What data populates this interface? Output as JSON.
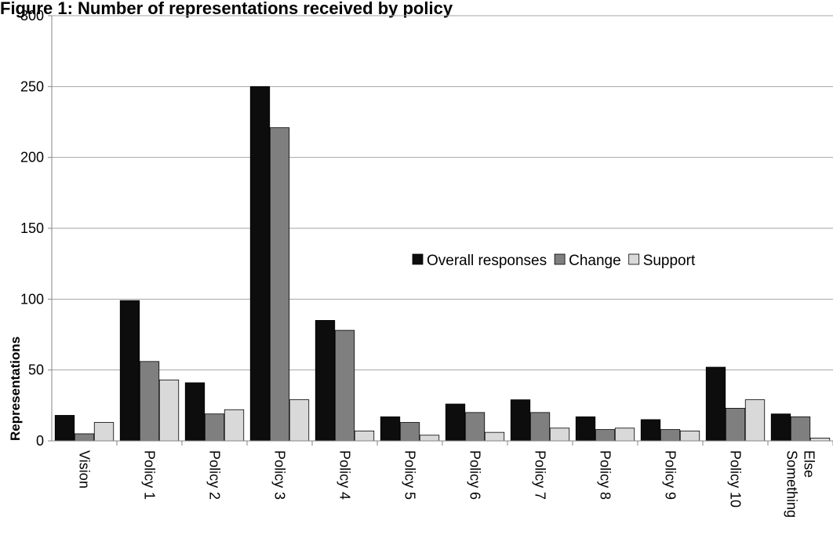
{
  "chart_data": {
    "type": "bar",
    "title": "Figure 1: Number of representations received by policy",
    "xlabel": "",
    "ylabel": "Representations",
    "ylim": [
      0,
      300
    ],
    "yticks": [
      0,
      50,
      100,
      150,
      200,
      250,
      300
    ],
    "grid": true,
    "legend_position": "center-right",
    "categories": [
      "Vision",
      "Policy 1",
      "Policy 2",
      "Policy 3",
      "Policy 4",
      "Policy 5",
      "Policy 6",
      "Policy 7",
      "Policy 8",
      "Policy 9",
      "Policy 10",
      "Something Else"
    ],
    "category_lines": [
      [
        "Vision"
      ],
      [
        "Policy 1"
      ],
      [
        "Policy 2"
      ],
      [
        "Policy 3"
      ],
      [
        "Policy 4"
      ],
      [
        "Policy 5"
      ],
      [
        "Policy 6"
      ],
      [
        "Policy 7"
      ],
      [
        "Policy 8"
      ],
      [
        "Policy 9"
      ],
      [
        "Policy 10"
      ],
      [
        "Something",
        "Else"
      ]
    ],
    "series": [
      {
        "name": "Overall responses",
        "color": "#0d0d0d",
        "values": [
          18,
          99,
          41,
          250,
          85,
          17,
          26,
          29,
          17,
          15,
          52,
          19
        ]
      },
      {
        "name": "Change",
        "color": "#7f7f7f",
        "values": [
          5,
          56,
          19,
          221,
          78,
          13,
          20,
          20,
          8,
          8,
          23,
          17
        ]
      },
      {
        "name": "Support",
        "color": "#d9d9d9",
        "values": [
          13,
          43,
          22,
          29,
          7,
          4,
          6,
          9,
          9,
          7,
          29,
          2
        ]
      }
    ]
  }
}
